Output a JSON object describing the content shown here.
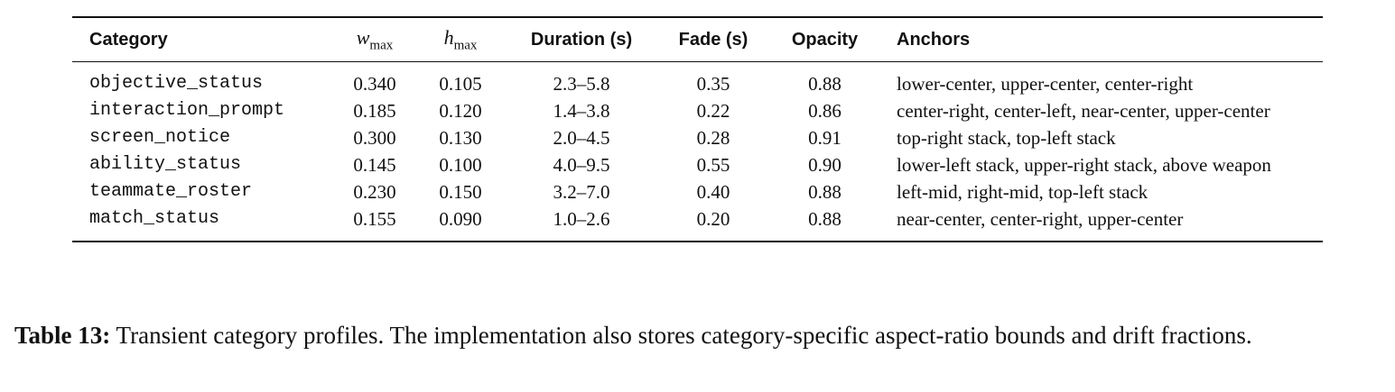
{
  "table": {
    "headers": [
      {
        "text": "Category"
      },
      {
        "symbol": "w",
        "subscript": "max"
      },
      {
        "symbol": "h",
        "subscript": "max"
      },
      {
        "text": "Duration (s)"
      },
      {
        "text": "Fade (s)"
      },
      {
        "text": "Opacity"
      },
      {
        "text": "Anchors"
      }
    ],
    "rows": [
      [
        "objective_status",
        "0.340",
        "0.105",
        "2.3–5.8",
        "0.35",
        "0.88",
        "lower-center, upper-center, center-right"
      ],
      [
        "interaction_prompt",
        "0.185",
        "0.120",
        "1.4–3.8",
        "0.22",
        "0.86",
        "center-right, center-left, near-center, upper-center"
      ],
      [
        "screen_notice",
        "0.300",
        "0.130",
        "2.0–4.5",
        "0.28",
        "0.91",
        "top-right stack, top-left stack"
      ],
      [
        "ability_status",
        "0.145",
        "0.100",
        "4.0–9.5",
        "0.55",
        "0.90",
        "lower-left stack, upper-right stack, above weapon"
      ],
      [
        "teammate_roster",
        "0.230",
        "0.150",
        "3.2–7.0",
        "0.40",
        "0.88",
        "left-mid, right-mid, top-left stack"
      ],
      [
        "match_status",
        "0.155",
        "0.090",
        "1.0–2.6",
        "0.20",
        "0.88",
        "near-center, center-right, upper-center"
      ]
    ]
  },
  "caption": {
    "label": "Table 13:",
    "text": "Transient category profiles. The implementation also stores category-specific aspect-ratio bounds and drift fractions."
  }
}
